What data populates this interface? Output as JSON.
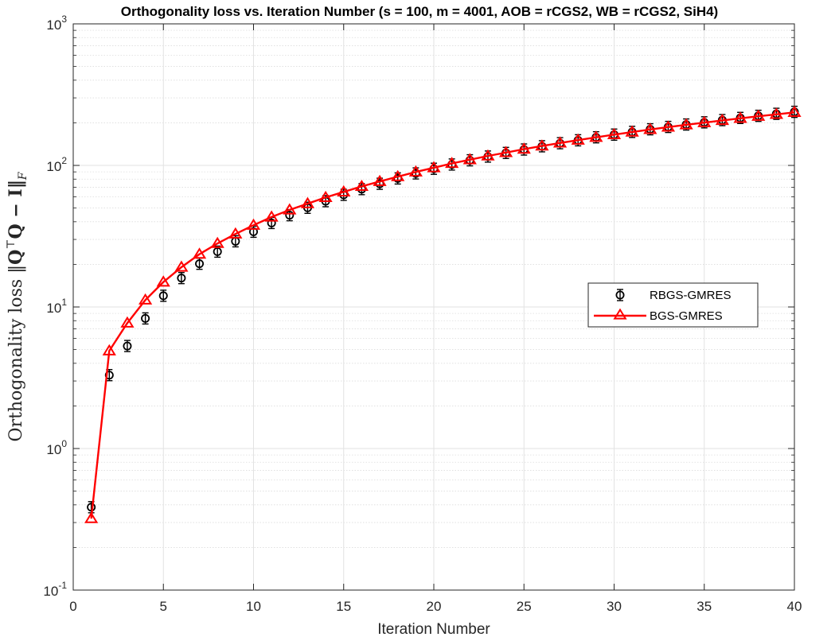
{
  "chart_data": {
    "type": "line",
    "title": "Orthogonality loss vs. Iteration Number (s = 100, m = 4001, AOB = rCGS2, WB = rCGS2, SiH4)",
    "xlabel": "Iteration Number",
    "ylabel": "Orthogonality loss ‖QᵀQ − I‖_F",
    "ylabel_parts": {
      "main": "Orthogonality loss ‖",
      "q1": "Q",
      "sup": "⊤",
      "rest": "Q − I‖",
      "sub": "F"
    },
    "xlim": [
      0,
      40
    ],
    "ylim": [
      0.1,
      1000
    ],
    "yscale": "log",
    "grid": true,
    "legend_position": "right",
    "x_ticks": [
      0,
      5,
      10,
      15,
      20,
      25,
      30,
      35,
      40
    ],
    "x_tick_labels": [
      "0",
      "5",
      "10",
      "15",
      "20",
      "25",
      "30",
      "35",
      "40"
    ],
    "y_ticks": [
      0.1,
      1,
      10,
      100,
      1000
    ],
    "y_tick_labels": [
      {
        "base": "10",
        "exp": "-1"
      },
      {
        "base": "10",
        "exp": "0"
      },
      {
        "base": "10",
        "exp": "1"
      },
      {
        "base": "10",
        "exp": "2"
      },
      {
        "base": "10",
        "exp": "3"
      }
    ],
    "x": [
      1,
      2,
      3,
      4,
      5,
      6,
      7,
      8,
      9,
      10,
      11,
      12,
      13,
      14,
      15,
      16,
      17,
      18,
      19,
      20,
      21,
      22,
      23,
      24,
      25,
      26,
      27,
      28,
      29,
      30,
      31,
      32,
      33,
      34,
      35,
      36,
      37,
      38,
      39,
      40
    ],
    "series": [
      {
        "name": "RBGS-GMRES",
        "color": "#000000",
        "marker": "circle-errorbar",
        "line": false,
        "values": [
          0.385,
          3.3,
          5.3,
          8.3,
          12.0,
          16.0,
          20.2,
          24.6,
          29.1,
          34.0,
          39.2,
          44.5,
          50.2,
          55.9,
          62.0,
          68.0,
          74.2,
          80.9,
          87.8,
          94.7,
          101.5,
          108.7,
          115.5,
          122.5,
          129.5,
          136.5,
          143.5,
          150.5,
          158.0,
          165.0,
          172.5,
          180.0,
          187.0,
          194.5,
          201.5,
          209.0,
          216.5,
          224.0,
          231.5,
          239.0
        ]
      },
      {
        "name": "BGS-GMRES",
        "color": "#ff0000",
        "marker": "triangle",
        "line": true,
        "values": [
          0.32,
          4.9,
          7.7,
          11.2,
          15.0,
          19.1,
          23.6,
          28.1,
          32.8,
          37.8,
          43.2,
          48.5,
          53.7,
          59.4,
          65.0,
          71.1,
          77.0,
          83.3,
          89.9,
          96.3,
          103.3,
          109.8,
          116.6,
          123.2,
          130.2,
          137.1,
          144.1,
          151.0,
          158.0,
          165.0,
          172.0,
          179.5,
          186.5,
          193.5,
          200.5,
          208.0,
          215.0,
          222.5,
          229.5,
          237.0
        ]
      }
    ]
  }
}
